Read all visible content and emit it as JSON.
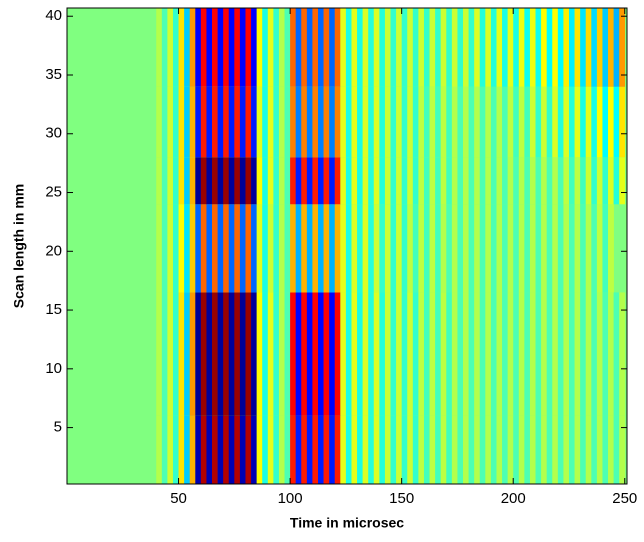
{
  "chart_data": {
    "type": "heatmap",
    "xlabel": "Time in microsec",
    "ylabel": "Scan length in mm",
    "xlim": [
      0,
      251
    ],
    "ylim": [
      0.2,
      40.7
    ],
    "xticks": [
      50,
      100,
      150,
      200,
      250
    ],
    "yticks": [
      5,
      10,
      15,
      20,
      25,
      30,
      35,
      40
    ],
    "colormap": "jet",
    "zlim": [
      -1,
      1
    ],
    "xbins": [
      0,
      2.5,
      5,
      7.5,
      10,
      12.5,
      15,
      17.5,
      20,
      22.5,
      25,
      27.5,
      30,
      32.5,
      35,
      37.5,
      40,
      42.5,
      45,
      47.5,
      50,
      52.5,
      55,
      57.5,
      60,
      62.5,
      65,
      67.5,
      70,
      72.5,
      75,
      77.5,
      80,
      82.5,
      85,
      87.5,
      90,
      92.5,
      95,
      97.5,
      100,
      102.5,
      105,
      107.5,
      110,
      112.5,
      115,
      117.5,
      120,
      122.5,
      125,
      127.5,
      130,
      132.5,
      135,
      137.5,
      140,
      142.5,
      145,
      147.5,
      150,
      152.5,
      155,
      157.5,
      160,
      162.5,
      165,
      167.5,
      170,
      172.5,
      175,
      177.5,
      180,
      182.5,
      185,
      187.5,
      190,
      192.5,
      195,
      197.5,
      200,
      202.5,
      205,
      207.5,
      210,
      212.5,
      215,
      217.5,
      220,
      222.5,
      225,
      227.5,
      230,
      232.5,
      235,
      237.5,
      240,
      242.5,
      245,
      247.5,
      250
    ],
    "ybins": [
      0.2,
      6,
      16.5,
      24,
      28,
      34,
      40.7
    ],
    "z": [
      [
        0,
        0,
        0,
        0,
        0,
        0,
        0,
        0,
        0,
        0,
        0,
        0,
        0,
        0,
        0,
        0,
        0.1,
        -0.1,
        0.15,
        -0.15,
        0.3,
        -0.35,
        0.4,
        -0.9,
        0.9,
        -0.9,
        0.9,
        -0.9,
        0.9,
        -0.9,
        0.9,
        -0.9,
        0.9,
        -0.9,
        0.25,
        -0.2,
        0.2,
        -0.15,
        0.1,
        -0.1,
        0.7,
        -0.7,
        0.7,
        -0.7,
        0.7,
        -0.7,
        0.7,
        -0.7,
        0.7,
        0.2,
        -0.2,
        0.2,
        -0.2,
        0.18,
        -0.18,
        0.18,
        -0.18,
        0.15,
        -0.15,
        0.15,
        -0.15,
        0.15,
        -0.15,
        0.12,
        -0.12,
        0.12,
        -0.12,
        0.12,
        -0.12,
        0.1,
        -0.1,
        0.1,
        -0.1,
        0.1,
        -0.1,
        0.1,
        -0.1,
        0.1,
        -0.1,
        0.1,
        -0.1,
        0.1,
        -0.1,
        0.1,
        -0.1,
        0.1,
        -0.1,
        0.1,
        -0.1,
        0.1,
        -0.1,
        0.1,
        -0.1,
        0.1,
        -0.1,
        0.1,
        -0.1,
        0.1,
        -0.1,
        0.1
      ],
      [
        0,
        0,
        0,
        0,
        0,
        0,
        0,
        0,
        0,
        0,
        0,
        0,
        0,
        0,
        0,
        0,
        0.1,
        -0.1,
        0.15,
        -0.15,
        0.3,
        -0.35,
        0.45,
        -0.95,
        0.95,
        -0.95,
        0.95,
        -0.95,
        0.95,
        -0.95,
        0.95,
        -0.95,
        0.95,
        -0.95,
        0.25,
        -0.2,
        0.2,
        -0.15,
        0.1,
        -0.1,
        0.75,
        -0.75,
        0.75,
        -0.75,
        0.75,
        -0.75,
        0.75,
        -0.75,
        0.75,
        0.2,
        -0.2,
        0.2,
        -0.2,
        0.18,
        -0.18,
        0.18,
        -0.18,
        0.15,
        -0.15,
        0.15,
        -0.15,
        0.15,
        -0.15,
        0.12,
        -0.12,
        0.12,
        -0.12,
        0.12,
        -0.12,
        0.1,
        -0.1,
        0.1,
        -0.1,
        0.1,
        -0.1,
        0.1,
        -0.1,
        0.1,
        -0.1,
        0.1,
        -0.1,
        0.1,
        -0.1,
        0.1,
        -0.1,
        0.1,
        -0.1,
        0.1,
        -0.1,
        0.1,
        -0.1,
        0.1,
        -0.1,
        0.1,
        -0.1,
        0.1,
        -0.1,
        0.1,
        -0.1,
        0.1
      ],
      [
        0,
        0,
        0,
        0,
        0,
        0,
        0,
        0,
        0,
        0,
        0,
        0,
        0,
        0,
        0,
        0,
        0.1,
        -0.1,
        0.15,
        -0.15,
        0.25,
        -0.3,
        0.35,
        -0.55,
        0.55,
        -0.55,
        0.55,
        -0.55,
        0.55,
        -0.55,
        0.55,
        -0.55,
        0.55,
        -0.55,
        0.2,
        -0.2,
        0.15,
        -0.15,
        0.1,
        -0.1,
        0.4,
        -0.4,
        0.4,
        -0.4,
        0.4,
        -0.4,
        0.4,
        -0.4,
        0.4,
        0.2,
        -0.2,
        0.18,
        -0.18,
        0.18,
        -0.18,
        0.15,
        -0.15,
        0.15,
        -0.15,
        0.15,
        -0.15,
        0.12,
        -0.12,
        0.12,
        -0.12,
        0.12,
        -0.12,
        0.1,
        -0.1,
        0.1,
        -0.1,
        0.1,
        -0.1,
        0.1,
        -0.1,
        0.1,
        -0.1,
        0.1,
        -0.1,
        0.1,
        -0.1,
        0.1,
        -0.1,
        0.1,
        -0.1,
        0.1,
        -0.1,
        0.1,
        -0.1,
        0.1,
        -0.1,
        0.1,
        -0.1,
        0.1,
        -0.1,
        0.12,
        -0.12,
        0.12
      ],
      [
        0,
        0,
        0,
        0,
        0,
        0,
        0,
        0,
        0,
        0,
        0,
        0,
        0,
        0,
        0,
        0,
        0.1,
        -0.1,
        0.15,
        -0.15,
        0.3,
        -0.35,
        0.4,
        -0.95,
        0.95,
        -0.95,
        0.95,
        -0.95,
        0.95,
        -0.95,
        0.95,
        -0.95,
        0.95,
        -0.95,
        0.25,
        -0.2,
        0.2,
        -0.15,
        0.1,
        -0.1,
        0.7,
        -0.7,
        0.7,
        -0.7,
        0.7,
        -0.7,
        0.7,
        -0.7,
        0.7,
        0.2,
        -0.2,
        0.2,
        -0.2,
        0.18,
        -0.18,
        0.18,
        -0.18,
        0.15,
        -0.15,
        0.15,
        -0.15,
        0.15,
        -0.15,
        0.12,
        -0.12,
        0.12,
        -0.12,
        0.12,
        -0.12,
        0.1,
        -0.1,
        0.1,
        -0.1,
        0.1,
        -0.1,
        0.1,
        -0.1,
        0.1,
        -0.1,
        0.1,
        -0.1,
        0.1,
        -0.1,
        0.1,
        -0.1,
        0.1,
        -0.1,
        0.1,
        -0.1,
        0.12,
        -0.12,
        0.12,
        -0.12,
        0.15,
        -0.15,
        0.15,
        -0.15,
        0.18,
        -0.18,
        0.2
      ],
      [
        0,
        0,
        0,
        0,
        0,
        0,
        0,
        0,
        0,
        0,
        0,
        0,
        0,
        0,
        0,
        0,
        0.1,
        -0.1,
        0.15,
        -0.15,
        0.3,
        -0.35,
        0.4,
        -0.7,
        0.7,
        -0.7,
        0.7,
        -0.7,
        0.7,
        -0.7,
        0.7,
        -0.7,
        0.7,
        -0.7,
        0.2,
        -0.2,
        0.2,
        -0.15,
        0.1,
        -0.1,
        0.5,
        -0.5,
        0.5,
        -0.5,
        0.5,
        -0.5,
        0.5,
        -0.5,
        0.5,
        0.2,
        -0.2,
        0.2,
        -0.2,
        0.18,
        -0.18,
        0.18,
        -0.18,
        0.15,
        -0.15,
        0.15,
        -0.15,
        0.15,
        -0.15,
        0.12,
        -0.12,
        0.12,
        -0.12,
        0.12,
        -0.12,
        0.1,
        -0.1,
        0.1,
        -0.1,
        0.1,
        -0.1,
        0.1,
        -0.1,
        0.1,
        -0.1,
        0.12,
        -0.12,
        0.12,
        -0.12,
        0.15,
        -0.15,
        0.15,
        -0.15,
        0.18,
        -0.18,
        0.18,
        -0.18,
        0.2,
        -0.2,
        0.2,
        -0.2,
        0.25,
        -0.25,
        0.25,
        -0.25,
        0.3
      ],
      [
        0,
        0,
        0,
        0,
        0,
        0,
        0,
        0,
        0,
        0,
        0,
        0,
        0,
        0,
        0,
        0,
        0.1,
        -0.1,
        0.15,
        -0.15,
        0.3,
        -0.35,
        0.45,
        -0.75,
        0.75,
        -0.75,
        0.75,
        -0.75,
        0.75,
        -0.75,
        0.75,
        -0.75,
        0.75,
        -0.75,
        0.25,
        -0.2,
        0.2,
        -0.15,
        0.1,
        -0.1,
        0.55,
        -0.55,
        0.55,
        -0.55,
        0.55,
        -0.55,
        0.55,
        -0.55,
        0.55,
        0.2,
        -0.2,
        0.2,
        -0.2,
        0.18,
        -0.18,
        0.18,
        -0.18,
        0.15,
        -0.15,
        0.15,
        -0.15,
        0.15,
        -0.15,
        0.15,
        -0.15,
        0.15,
        -0.15,
        0.15,
        -0.15,
        0.15,
        -0.15,
        0.15,
        -0.15,
        0.18,
        -0.18,
        0.18,
        -0.18,
        0.2,
        -0.2,
        0.2,
        -0.2,
        0.22,
        -0.22,
        0.22,
        -0.22,
        0.25,
        -0.25,
        0.25,
        -0.25,
        0.28,
        -0.28,
        0.3,
        -0.3,
        0.32,
        -0.32,
        0.35,
        -0.35,
        0.4,
        -0.4,
        0.45
      ]
    ]
  }
}
